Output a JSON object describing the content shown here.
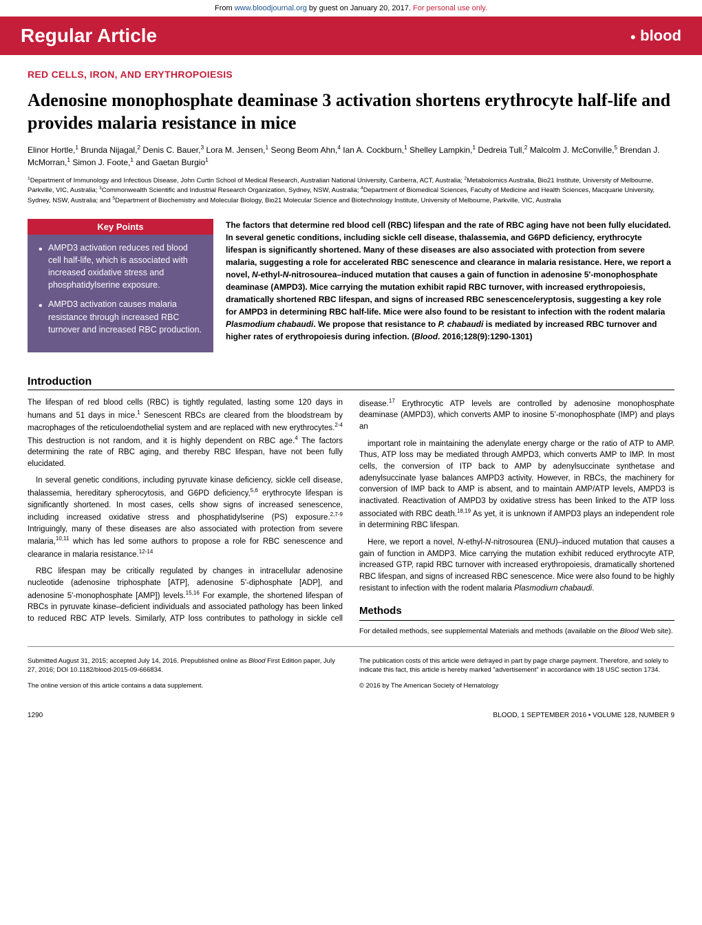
{
  "banner": {
    "prefix": "From ",
    "link": "www.bloodjournal.org",
    "middle": " by guest on January 20, 2017. ",
    "suffix": "For personal use only."
  },
  "header": {
    "title": "Regular Article",
    "logo": "blood"
  },
  "section_label": "RED CELLS, IRON, AND ERYTHROPOIESIS",
  "article_title": "Adenosine monophosphate deaminase 3 activation shortens erythrocyte half-life and provides malaria resistance in mice",
  "authors_html": "Elinor Hortle,<sup>1</sup> Brunda Nijagal,<sup>2</sup> Denis C. Bauer,<sup>3</sup> Lora M. Jensen,<sup>1</sup> Seong Beom Ahn,<sup>4</sup> Ian A. Cockburn,<sup>1</sup> Shelley Lampkin,<sup>1</sup> Dedreia Tull,<sup>2</sup> Malcolm J. McConville,<sup>5</sup> Brendan J. McMorran,<sup>1</sup> Simon J. Foote,<sup>1</sup> and Gaetan Burgio<sup>1</sup>",
  "affiliations_html": "<sup>1</sup>Department of Immunology and Infectious Disease, John Curtin School of Medical Research, Australian National University, Canberra, ACT, Australia; <sup>2</sup>Metabolomics Australia, Bio21 Institute, University of Melbourne, Parkville, VIC, Australia; <sup>3</sup>Commonwealth Scientific and Industrial Research Organization, Sydney, NSW, Australia; <sup>4</sup>Department of Biomedical Sciences, Faculty of Medicine and Health Sciences, Macquarie University, Sydney, NSW, Australia; and <sup>5</sup>Department of Biochemistry and Molecular Biology, Bio21 Molecular Science and Biotechnology Institute, University of Melbourne, Parkville, VIC, Australia",
  "key_points": {
    "heading": "Key Points",
    "items": [
      "AMPD3 activation reduces red blood cell half-life, which is associated with increased oxidative stress and phosphatidylserine exposure.",
      "AMPD3 activation causes malaria resistance through increased RBC turnover and increased RBC production."
    ]
  },
  "abstract_html": "The factors that determine red blood cell (RBC) lifespan and the rate of RBC aging have not been fully elucidated. In several genetic conditions, including sickle cell disease, thalassemia, and G6PD deficiency, erythrocyte lifespan is significantly shortened. Many of these diseases are also associated with protection from severe malaria, suggesting a role for accelerated RBC senescence and clearance in malaria resistance. Here, we report a novel, <span class=\"ital\">N</span>-ethyl-<span class=\"ital\">N</span>-nitrosourea–induced mutation that causes a gain of function in adenosine 5'-monophosphate deaminase (AMPD3). Mice carrying the mutation exhibit rapid RBC turnover, with increased erythropoiesis, dramatically shortened RBC lifespan, and signs of increased RBC senescence/eryptosis, suggesting a key role for AMPD3 in determining RBC half-life. Mice were also found to be resistant to infection with the rodent malaria <span class=\"ital\">Plasmodium chabaudi</span>. We propose that resistance to <span class=\"ital\">P. chabaudi</span> is mediated by increased RBC turnover and higher rates of erythropoiesis during infection. (<span class=\"ital\">Blood</span>. 2016;128(9):1290-1301)",
  "introduction": {
    "heading": "Introduction",
    "paragraphs_html": [
      "The lifespan of red blood cells (RBC) is tightly regulated, lasting some 120 days in humans and 51 days in mice.<sup>1</sup> Senescent RBCs are cleared from the bloodstream by macrophages of the reticuloendothelial system and are replaced with new erythrocytes.<sup>2-4</sup> This destruction is not random, and it is highly dependent on RBC age.<sup>4</sup> The factors determining the rate of RBC aging, and thereby RBC lifespan, have not been fully elucidated.",
      "In several genetic conditions, including pyruvate kinase deficiency, sickle cell disease, thalassemia, hereditary spherocytosis, and G6PD deficiency,<sup>5,6</sup> erythrocyte lifespan is significantly shortened. In most cases, cells show signs of increased senescence, including increased oxidative stress and phosphatidylserine (PS) exposure.<sup>2,7-9</sup> Intriguingly, many of these diseases are also associated with protection from severe malaria,<sup>10,11</sup> which has led some authors to propose a role for RBC senescence and clearance in malaria resistance.<sup>12-14</sup>",
      "RBC lifespan may be critically regulated by changes in intracellular adenosine nucleotide (adenosine triphosphate [ATP], adenosine 5'-diphosphate [ADP], and adenosine 5'-monophosphate [AMP]) levels.<sup>15,16</sup> For example, the shortened lifespan of RBCs in pyruvate kinase–deficient individuals and associated pathology has been linked to reduced RBC ATP levels. Similarly, ATP loss contributes to pathology in sickle cell disease.<sup>17</sup> Erythrocytic ATP levels are controlled by adenosine monophosphate deaminase (AMPD3), which converts AMP to inosine 5'-monophosphate (IMP) and plays an",
      "important role in maintaining the adenylate energy charge or the ratio of ATP to AMP. Thus, ATP loss may be mediated through AMPD3, which converts AMP to IMP. In most cells, the conversion of ITP back to AMP by adenylsuccinate synthetase and adenylsuccinate lyase balances AMPD3 activity. However, in RBCs, the machinery for conversion of IMP back to AMP is absent, and to maintain AMP/ATP levels, AMPD3 is inactivated. Reactivation of AMPD3 by oxidative stress has been linked to the ATP loss associated with RBC death.<sup>18,19</sup> As yet, it is unknown if AMPD3 plays an independent role in determining RBC lifespan.",
      "Here, we report a novel, <span class=\"ital\">N</span>-ethyl-<span class=\"ital\">N</span>-nitrosourea (ENU)–induced mutation that causes a gain of function in AMDP3. Mice carrying the mutation exhibit reduced erythrocyte ATP, increased GTP, rapid RBC turnover with increased erythropoiesis, dramatically shortened RBC lifespan, and signs of increased RBC senescence. Mice were also found to be highly resistant to infection with the rodent malaria <span class=\"ital\">Plasmodium chabaudi</span>."
    ]
  },
  "methods": {
    "heading": "Methods",
    "text_html": "For detailed methods, see supplemental Materials and methods (available on the <span class=\"ital\">Blood</span> Web site)."
  },
  "footer": {
    "left": [
      "Submitted August 31, 2015; accepted July 14, 2016. Prepublished online as <span class=\"ital\">Blood</span> First Edition paper, July 27, 2016; DOI 10.1182/blood-2015-09-666834.",
      "The online version of this article contains a data supplement."
    ],
    "right": [
      "The publication costs of this article were defrayed in part by page charge payment. Therefore, and solely to indicate this fact, this article is hereby marked \"advertisement\" in accordance with 18 USC section 1734.",
      "© 2016 by The American Society of Hematology"
    ]
  },
  "page_footer": {
    "page": "1290",
    "citation": "BLOOD, 1 SEPTEMBER 2016 • VOLUME 128, NUMBER 9"
  },
  "colors": {
    "brand_red": "#c41e3a",
    "keypoints_bg": "#6a5a8a",
    "link_blue": "#1a5490"
  }
}
